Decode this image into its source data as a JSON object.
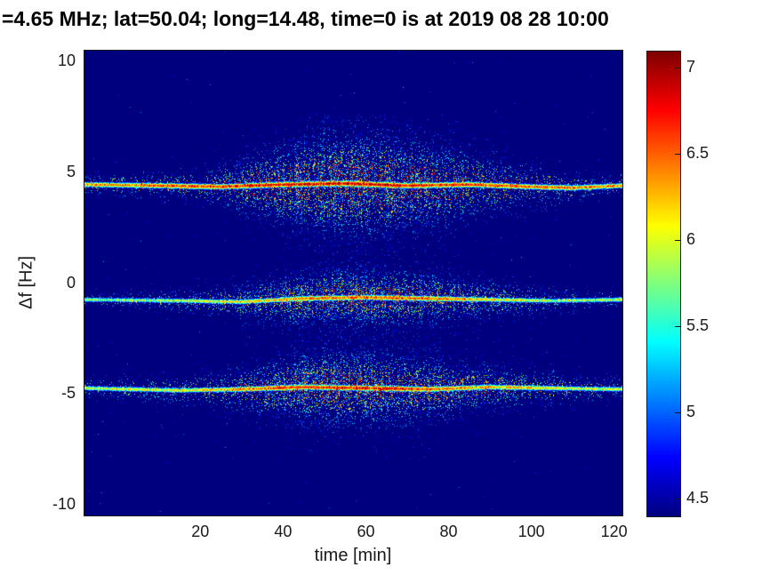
{
  "chart_data": {
    "type": "heatmap",
    "title": "=4.65 MHz;  lat=50.04; long=14.48, time=0 is at 2019 08 28 10:00",
    "xlabel": "time [min]",
    "ylabel": "Δf [Hz]",
    "xlim": [
      -8,
      122
    ],
    "ylim": [
      -10.5,
      10.5
    ],
    "xticks": [
      20,
      40,
      60,
      80,
      100,
      120
    ],
    "yticks": [
      10,
      5,
      0,
      -5,
      -10
    ],
    "colormap": "jet",
    "clim": [
      4.4,
      7.1
    ],
    "colorbar_ticks": [
      4.5,
      5,
      5.5,
      6,
      6.5,
      7
    ],
    "background_value": 4.3,
    "colors": {
      "figure_background": "#ffffff",
      "plot_background_deep_blue": "#000080",
      "axis_text": "#1a1a1a",
      "title_text": "#000000"
    },
    "bands": [
      {
        "name": "upper-doppler-trace",
        "center": [
          [
            -8,
            4.45
          ],
          [
            10,
            4.4
          ],
          [
            25,
            4.35
          ],
          [
            40,
            4.45
          ],
          [
            55,
            4.5
          ],
          [
            70,
            4.4
          ],
          [
            85,
            4.45
          ],
          [
            100,
            4.35
          ],
          [
            110,
            4.3
          ],
          [
            122,
            4.4
          ]
        ],
        "core": [
          [
            -8,
            6.6
          ],
          [
            10,
            6.8
          ],
          [
            25,
            6.9
          ],
          [
            35,
            7.05
          ],
          [
            50,
            7.1
          ],
          [
            65,
            7.1
          ],
          [
            80,
            6.95
          ],
          [
            95,
            6.8
          ],
          [
            110,
            6.7
          ],
          [
            122,
            6.6
          ]
        ],
        "width": [
          [
            -8,
            0.22
          ],
          [
            20,
            0.35
          ],
          [
            35,
            0.8
          ],
          [
            50,
            1.25
          ],
          [
            62,
            1.3
          ],
          [
            78,
            1.0
          ],
          [
            95,
            0.6
          ],
          [
            110,
            0.35
          ],
          [
            122,
            0.25
          ]
        ],
        "density": [
          [
            -8,
            0.25
          ],
          [
            20,
            0.4
          ],
          [
            40,
            0.8
          ],
          [
            55,
            0.9
          ],
          [
            70,
            0.75
          ],
          [
            90,
            0.5
          ],
          [
            110,
            0.3
          ],
          [
            122,
            0.2
          ]
        ]
      },
      {
        "name": "middle-doppler-trace",
        "center": [
          [
            -8,
            -0.75
          ],
          [
            15,
            -0.8
          ],
          [
            30,
            -0.85
          ],
          [
            45,
            -0.7
          ],
          [
            60,
            -0.65
          ],
          [
            75,
            -0.7
          ],
          [
            90,
            -0.75
          ],
          [
            105,
            -0.8
          ],
          [
            122,
            -0.75
          ]
        ],
        "core": [
          [
            -8,
            6.0
          ],
          [
            15,
            6.1
          ],
          [
            30,
            6.3
          ],
          [
            45,
            6.7
          ],
          [
            60,
            6.8
          ],
          [
            72,
            6.8
          ],
          [
            85,
            6.5
          ],
          [
            100,
            6.2
          ],
          [
            112,
            6.1
          ],
          [
            122,
            6.3
          ]
        ],
        "width": [
          [
            -8,
            0.18
          ],
          [
            20,
            0.3
          ],
          [
            40,
            0.6
          ],
          [
            55,
            0.75
          ],
          [
            70,
            0.7
          ],
          [
            85,
            0.5
          ],
          [
            100,
            0.35
          ],
          [
            122,
            0.2
          ]
        ],
        "density": [
          [
            -8,
            0.2
          ],
          [
            25,
            0.4
          ],
          [
            45,
            0.75
          ],
          [
            60,
            0.8
          ],
          [
            75,
            0.7
          ],
          [
            95,
            0.45
          ],
          [
            122,
            0.2
          ]
        ]
      },
      {
        "name": "lower-doppler-trace",
        "center": [
          [
            -8,
            -4.75
          ],
          [
            15,
            -4.85
          ],
          [
            30,
            -4.8
          ],
          [
            45,
            -4.7
          ],
          [
            60,
            -4.75
          ],
          [
            75,
            -4.8
          ],
          [
            90,
            -4.7
          ],
          [
            105,
            -4.75
          ],
          [
            122,
            -4.8
          ]
        ],
        "core": [
          [
            -8,
            6.2
          ],
          [
            15,
            6.3
          ],
          [
            30,
            6.6
          ],
          [
            42,
            6.9
          ],
          [
            55,
            7.0
          ],
          [
            68,
            6.95
          ],
          [
            80,
            6.7
          ],
          [
            95,
            6.5
          ],
          [
            110,
            6.3
          ],
          [
            122,
            6.2
          ]
        ],
        "width": [
          [
            -8,
            0.22
          ],
          [
            20,
            0.35
          ],
          [
            38,
            0.7
          ],
          [
            52,
            0.95
          ],
          [
            65,
            0.9
          ],
          [
            80,
            0.7
          ],
          [
            95,
            0.5
          ],
          [
            110,
            0.35
          ],
          [
            122,
            0.25
          ]
        ],
        "density": [
          [
            -8,
            0.25
          ],
          [
            25,
            0.45
          ],
          [
            45,
            0.8
          ],
          [
            60,
            0.8
          ],
          [
            75,
            0.7
          ],
          [
            95,
            0.5
          ],
          [
            122,
            0.25
          ]
        ]
      }
    ]
  }
}
